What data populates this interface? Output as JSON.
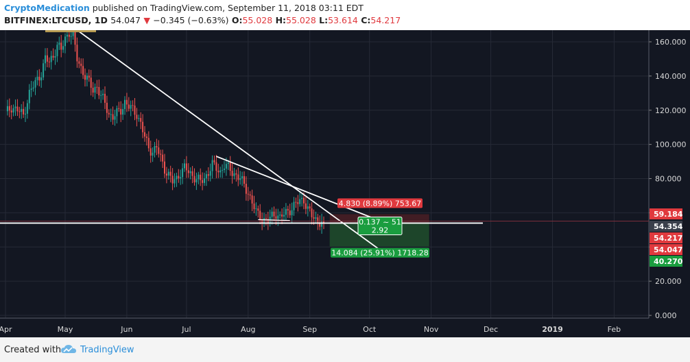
{
  "header": {
    "author": "CryptoMedication",
    "published_text": "published on TradingView.com, September 11, 2018 03:11 EDT",
    "symbol": "BITFINEX:LTCUSD, 1D",
    "last": "54.047",
    "arrow": "▼",
    "change": "−0.345 (−0.63%)",
    "open_label": "O:",
    "open": "55.028",
    "high_label": "H:",
    "high": "55.028",
    "low_label": "L:",
    "low": "53.614",
    "close_label": "C:",
    "close": "54.217"
  },
  "footer": {
    "created_with": "Created with",
    "brand": "TradingView"
  },
  "colors": {
    "background": "#131722",
    "grid": "#262a36",
    "up": "#26a69a",
    "down": "#ef5350",
    "trendline": "#ffffff",
    "target_zone": "#1f4a2b",
    "stop_zone": "#4a1f24"
  },
  "position_tool": {
    "stop_label": "4.830 (8.89%) 753.67",
    "center_line1": "0.137 ~ 51",
    "center_line2": "2.92",
    "target_label": "14.084 (25.91%) 1718.28"
  },
  "price_tags": [
    {
      "text": "59.184",
      "value": 59.184,
      "color": "#e0393e"
    },
    {
      "text": "54.354",
      "value": 54.354,
      "color": "#3a3f4b"
    },
    {
      "text": "54.217",
      "value": 54.217,
      "color": "#e0393e"
    },
    {
      "text": "54.047",
      "value": 54.047,
      "color": "#e0393e"
    },
    {
      "text": "40.270",
      "value": 40.27,
      "color": "#1a9d3f"
    }
  ],
  "chart_data": {
    "type": "candlestick",
    "title": "BITFINEX:LTCUSD, 1D",
    "ylim": [
      0,
      168
    ],
    "y_ticks": [
      0,
      20,
      40,
      60,
      80,
      100,
      120,
      140,
      160
    ],
    "y_tick_labels": [
      "0.000",
      "20.000",
      "40.000",
      "60.000",
      "80.000",
      "100.000",
      "120.000",
      "140.000",
      "160.000"
    ],
    "x_tick_labels": [
      "Apr",
      "May",
      "Jun",
      "Jul",
      "Aug",
      "Sep",
      "Oct",
      "Nov",
      "Dec",
      "2019",
      "Feb"
    ],
    "x_tick_days": [
      0,
      30,
      61,
      91,
      122,
      153,
      183,
      214,
      244,
      275,
      306
    ],
    "grid": true,
    "series": [
      {
        "close_path": [
          [
            0,
            118
          ],
          [
            3,
            122
          ],
          [
            6,
            120
          ],
          [
            9,
            117
          ],
          [
            12,
            130
          ],
          [
            15,
            136
          ],
          [
            18,
            142
          ],
          [
            20,
            150
          ],
          [
            22,
            148
          ],
          [
            24,
            152
          ],
          [
            26,
            158
          ],
          [
            28,
            155
          ],
          [
            30,
            162
          ],
          [
            32,
            166
          ],
          [
            34,
            163
          ],
          [
            36,
            150
          ],
          [
            38,
            145
          ],
          [
            40,
            140
          ],
          [
            42,
            136
          ],
          [
            44,
            132
          ],
          [
            46,
            134
          ],
          [
            48,
            128
          ],
          [
            50,
            124
          ],
          [
            52,
            118
          ],
          [
            54,
            116
          ],
          [
            56,
            118
          ],
          [
            58,
            120
          ],
          [
            60,
            125
          ],
          [
            62,
            122
          ],
          [
            64,
            120
          ],
          [
            66,
            118
          ],
          [
            68,
            112
          ],
          [
            70,
            104
          ],
          [
            72,
            98
          ],
          [
            74,
            96
          ],
          [
            76,
            98
          ],
          [
            78,
            92
          ],
          [
            80,
            86
          ],
          [
            82,
            82
          ],
          [
            84,
            78
          ],
          [
            86,
            80
          ],
          [
            88,
            84
          ],
          [
            90,
            86
          ],
          [
            92,
            84
          ],
          [
            94,
            82
          ],
          [
            96,
            80
          ],
          [
            98,
            78
          ],
          [
            100,
            80
          ],
          [
            102,
            84
          ],
          [
            104,
            88
          ],
          [
            106,
            86
          ],
          [
            108,
            84
          ],
          [
            110,
            88
          ],
          [
            112,
            86
          ],
          [
            114,
            84
          ],
          [
            116,
            82
          ],
          [
            118,
            80
          ],
          [
            120,
            76
          ],
          [
            122,
            72
          ],
          [
            124,
            66
          ],
          [
            126,
            60
          ],
          [
            128,
            58
          ],
          [
            130,
            56
          ],
          [
            132,
            55
          ],
          [
            134,
            58
          ],
          [
            136,
            60
          ],
          [
            138,
            57
          ],
          [
            140,
            59
          ],
          [
            142,
            61
          ],
          [
            144,
            63
          ],
          [
            146,
            65
          ],
          [
            148,
            67
          ],
          [
            150,
            68
          ],
          [
            152,
            62
          ],
          [
            154,
            58
          ],
          [
            156,
            56
          ],
          [
            158,
            55
          ],
          [
            160,
            54.2
          ]
        ]
      }
    ],
    "annotations": {
      "support_level": 54.354,
      "position_entry": 54.354,
      "position_stop": 59.184,
      "position_target": 40.27
    }
  }
}
